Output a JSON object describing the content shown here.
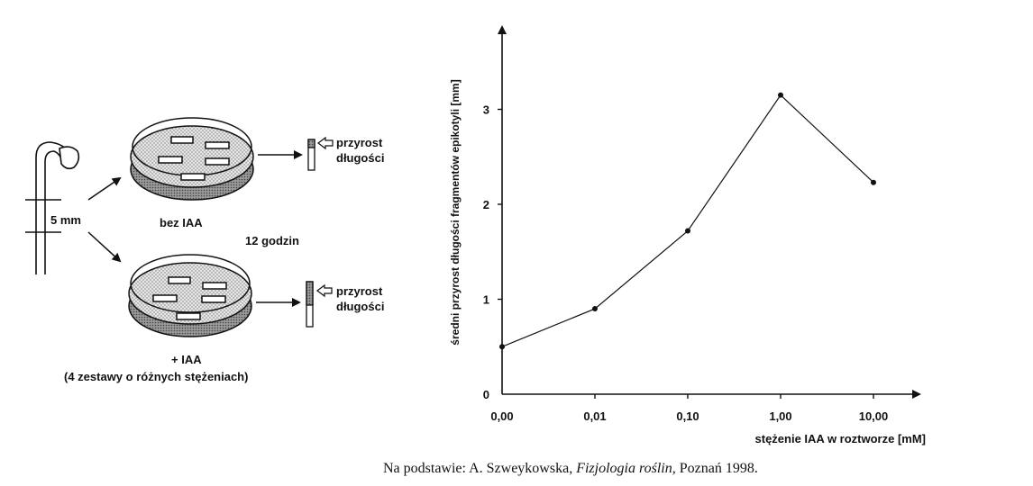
{
  "diagram": {
    "segment_label": "5 mm",
    "dish_control_label": "bez IAA",
    "time_label": "12 godzin",
    "growth_label_line1": "przyrost",
    "growth_label_line2": "długości",
    "dish_treatment_label_line1": "+ IAA",
    "dish_treatment_label_line2": "(4 zestawy o różnych stężeniach)"
  },
  "chart_data": {
    "type": "line",
    "ylabel": "średni przyrost długości fragmentów epikotyli [mm]",
    "xlabel": "stężenie IAA w roztworze [mM]",
    "categories": [
      "0,00",
      "0,01",
      "0,10",
      "1,00",
      "10,00"
    ],
    "yticks": [
      "0",
      "1",
      "2",
      "3"
    ],
    "ylim": [
      0,
      3.9
    ],
    "series": [
      {
        "values": [
          0.5,
          0.9,
          1.72,
          3.15,
          2.23
        ]
      }
    ],
    "grid": false,
    "legend": "none"
  },
  "caption": {
    "prefix": "Na podstawie: A. Szweykowska, ",
    "title": "Fizjologia roślin,",
    "suffix": " Poznań 1998."
  },
  "colors": {
    "ink": "#111111",
    "dish_fill": "#d9d9d9"
  }
}
